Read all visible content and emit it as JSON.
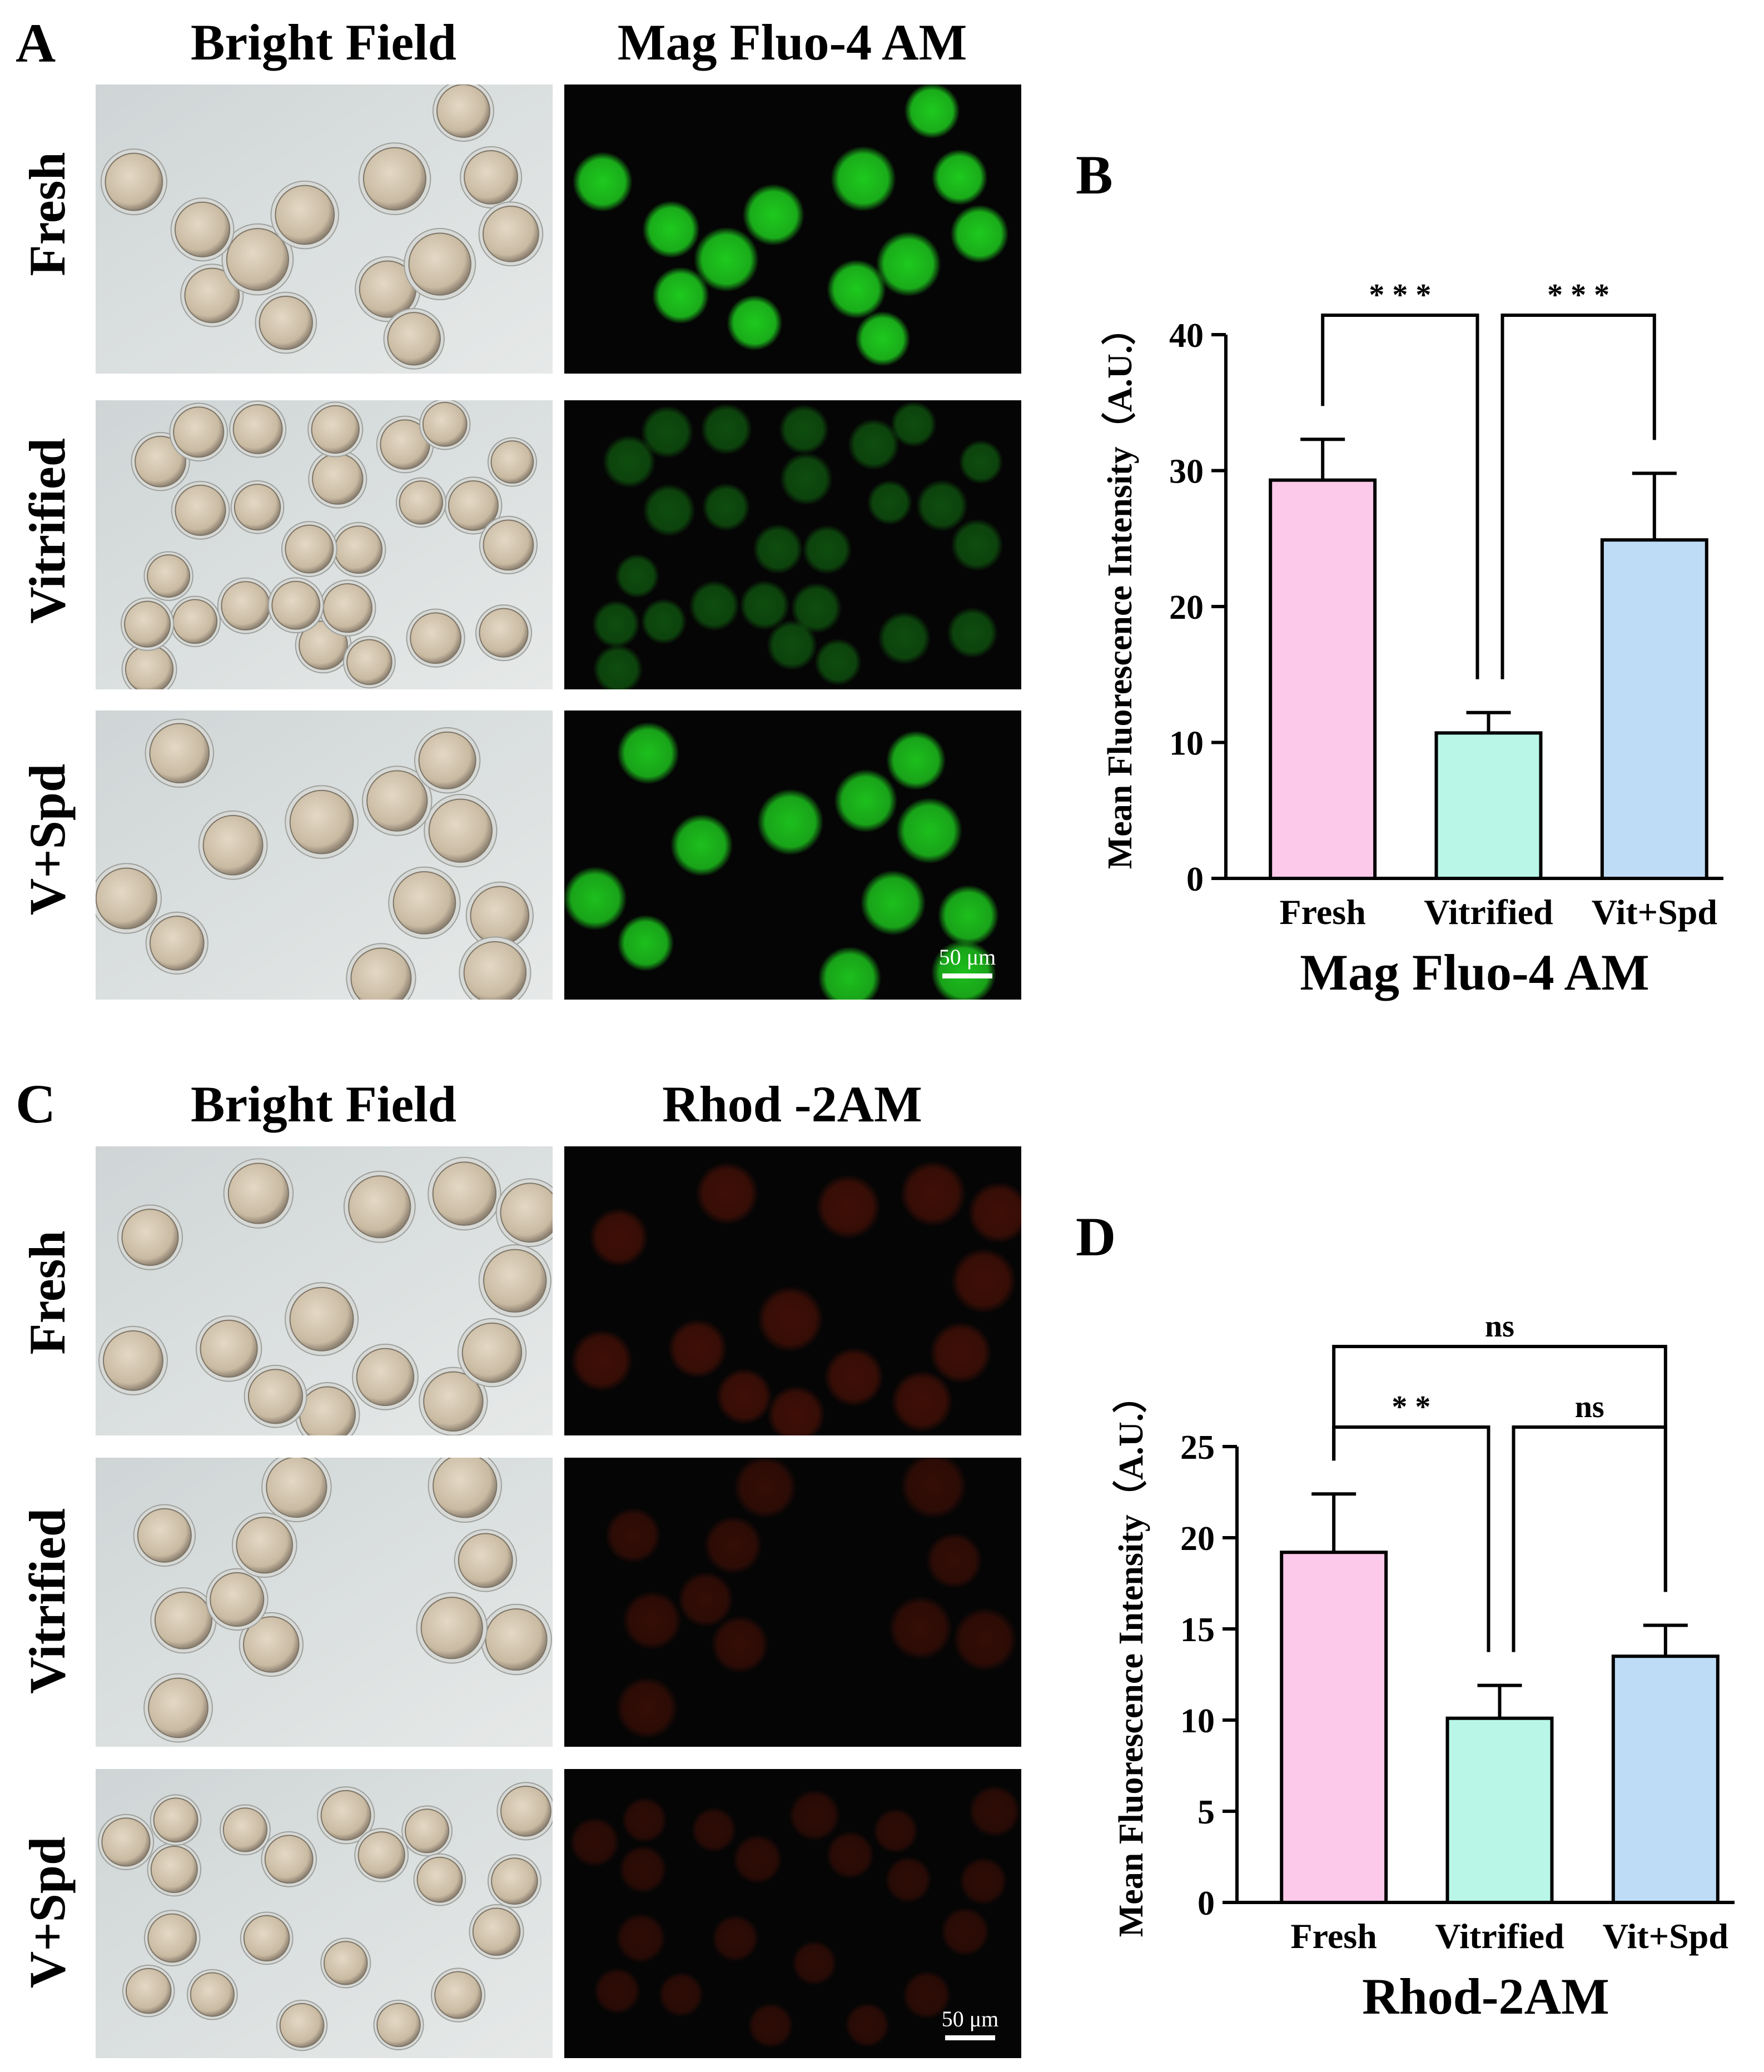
{
  "panels": {
    "A": "A",
    "B": "B",
    "C": "C",
    "D": "D"
  },
  "panelA": {
    "col_bright": "Bright Field",
    "col_fluor": "Mag Fluo-4 AM",
    "rows": [
      "Fresh",
      "Vitrified",
      "V+Spd"
    ],
    "scale_bar": "50 μm",
    "fluor_color": "#1fd41f"
  },
  "panelC": {
    "col_bright": "Bright Field",
    "col_fluor": "Rhod -2AM",
    "rows": [
      "Fresh",
      "Vitrified",
      "V+Spd"
    ],
    "scale_bar": "50 μm",
    "fluor_color": "#6e1708"
  },
  "chart_data": [
    {
      "type": "bar",
      "panel": "B",
      "categories": [
        "Fresh",
        "Vitrified",
        "Vit+Spd"
      ],
      "values": [
        29.3,
        10.7,
        24.9
      ],
      "errors": [
        3.0,
        1.5,
        4.9
      ],
      "colors": [
        "#fcc9ea",
        "#b9f6e7",
        "#bfdcf6"
      ],
      "ylim": [
        0,
        40
      ],
      "yticks": [
        0,
        10,
        20,
        30,
        40
      ],
      "xlabel": "Mag Fluo-4 AM",
      "ylabel": "Mean Fluorescence Intensity（A.U.）",
      "comparisons": [
        {
          "from": 0,
          "to": 1,
          "label": "* * *"
        },
        {
          "from": 1,
          "to": 2,
          "label": "* * *"
        }
      ]
    },
    {
      "type": "bar",
      "panel": "D",
      "categories": [
        "Fresh",
        "Vitrified",
        "Vit+Spd"
      ],
      "values": [
        19.2,
        10.1,
        13.5
      ],
      "errors": [
        3.2,
        1.8,
        1.7
      ],
      "colors": [
        "#fcc9ea",
        "#b9f6e7",
        "#bfdcf6"
      ],
      "ylim": [
        0,
        25
      ],
      "yticks": [
        0,
        5,
        10,
        15,
        20,
        25
      ],
      "xlabel": "Rhod-2AM",
      "ylabel": "Mean Fluorescence Intensity（A.U.）",
      "comparisons": [
        {
          "from": 0,
          "to": 2,
          "label": "ns"
        },
        {
          "from": 0,
          "to": 1,
          "label": "* *"
        },
        {
          "from": 1,
          "to": 2,
          "label": "ns"
        }
      ]
    }
  ]
}
